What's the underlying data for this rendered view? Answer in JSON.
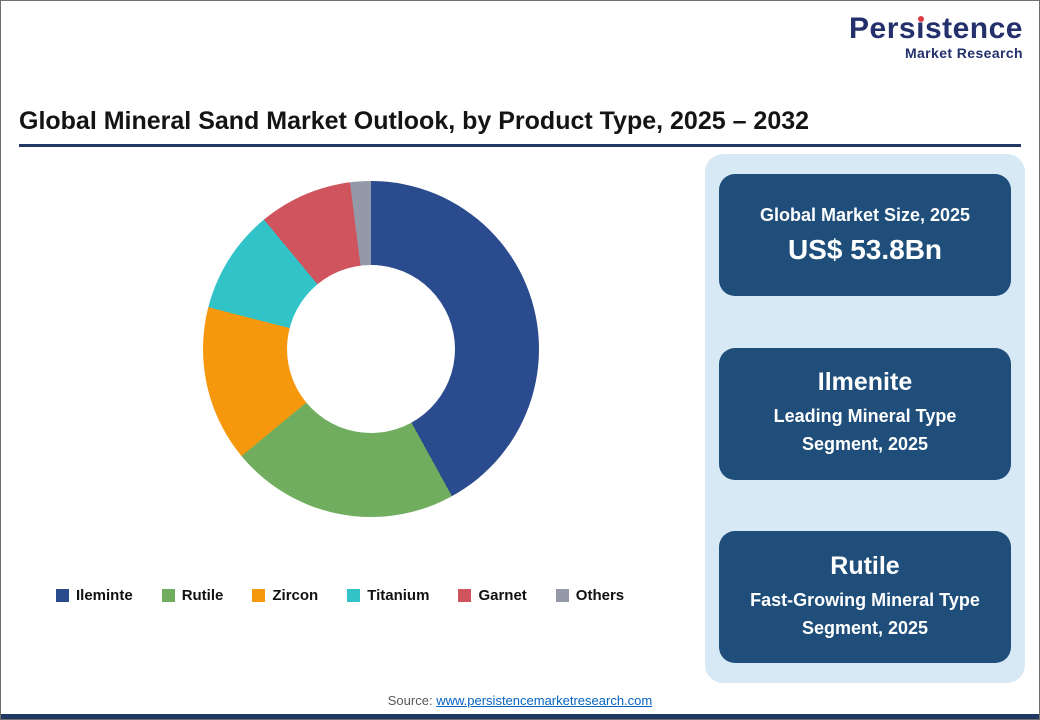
{
  "logo": {
    "name_pre": "Pers",
    "name_i": "ı",
    "name_post": "stence",
    "subtitle": "Market Research"
  },
  "header": {
    "title": "Global Mineral Sand Market Outlook, by Product Type, 2025 – 2032"
  },
  "chart_data": {
    "type": "pie",
    "subtype": "donut",
    "title": "Global Mineral Sand Market Outlook, by Product Type, 2025 – 2032",
    "categories": [
      "Ileminte",
      "Rutile",
      "Zircon",
      "Titanium",
      "Garnet",
      "Others"
    ],
    "values": [
      42,
      22,
      15,
      10,
      9,
      2
    ],
    "unit": "percent_share_estimated",
    "colors": [
      "#2a4b8e",
      "#70ad5f",
      "#f6980e",
      "#31c3c8",
      "#d0545e",
      "#9399a6"
    ],
    "legend_position": "bottom",
    "start_angle_deg": 0,
    "direction": "clockwise",
    "inner_radius_ratio": 0.5
  },
  "panel": {
    "cards": [
      {
        "line1": "Global Market Size, 2025",
        "line2": "US$ 53.8Bn"
      },
      {
        "line1": "Ilmenite",
        "line2": "Leading Mineral Type Segment, 2025"
      },
      {
        "line1": "Rutile",
        "line2": "Fast-Growing Mineral Type Segment, 2025"
      }
    ]
  },
  "footer": {
    "source_label": "Source:",
    "source_link": "www.persistencemarketresearch.com"
  },
  "colors": {
    "accent_navy": "#203864",
    "card_navy": "#1f4e7a",
    "panel_blue": "#d8e9f6",
    "logo_navy": "#23306b",
    "logo_red": "#e03c41"
  }
}
